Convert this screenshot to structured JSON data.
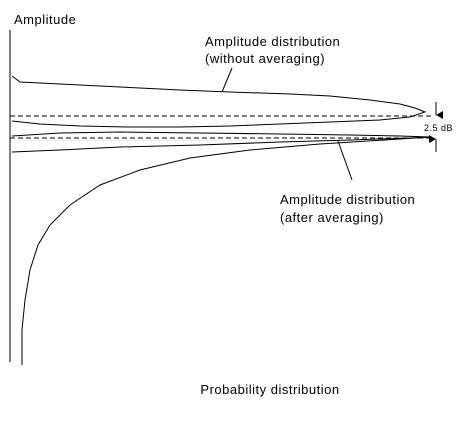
{
  "axis": {
    "y_label": "Amplitude",
    "x_label": "Probability distribution"
  },
  "annotations": {
    "upper": {
      "line1": "Amplitude distribution",
      "line2": "(without averaging)"
    },
    "lower": {
      "line1": "Amplitude distribution",
      "line2": "(after averaging)"
    },
    "span": "2.5 dB"
  }
}
